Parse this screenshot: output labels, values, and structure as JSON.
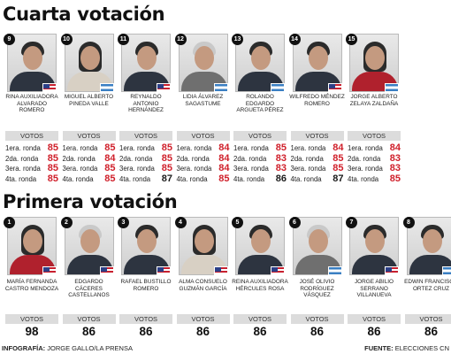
{
  "section_fourth": {
    "title": "Cuarta votación",
    "votes_label": "VOTOS",
    "round_labels": [
      "1era. ronda",
      "2da. ronda",
      "3era. ronda",
      "4ta. ronda"
    ],
    "candidates": [
      {
        "number": "9",
        "name": "RINA AUXILIADORA ALVARADO ROMERO",
        "flag": "us",
        "votes": [
          {
            "value": "85",
            "color": "#d0202b"
          },
          {
            "value": "85",
            "color": "#d0202b"
          },
          {
            "value": "85",
            "color": "#d0202b"
          },
          {
            "value": "85",
            "color": "#d0202b"
          }
        ]
      },
      {
        "number": "10",
        "name": "MIGUEL ALBERTO PINEDA VALLE",
        "flag": "hn",
        "votes": [
          {
            "value": "85",
            "color": "#d0202b"
          },
          {
            "value": "84",
            "color": "#d0202b"
          },
          {
            "value": "85",
            "color": "#d0202b"
          },
          {
            "value": "85",
            "color": "#d0202b"
          }
        ]
      },
      {
        "number": "11",
        "name": "REYNALDO ANTONIO HERNÁNDEZ",
        "flag": "us",
        "votes": [
          {
            "value": "85",
            "color": "#d0202b"
          },
          {
            "value": "85",
            "color": "#d0202b"
          },
          {
            "value": "85",
            "color": "#d0202b"
          },
          {
            "value": "87",
            "color": "#1a1a1a"
          }
        ]
      },
      {
        "number": "12",
        "name": "LIDIA ÁLVAREZ SAGASTUME",
        "flag": "hn",
        "votes": [
          {
            "value": "84",
            "color": "#d0202b"
          },
          {
            "value": "84",
            "color": "#d0202b"
          },
          {
            "value": "84",
            "color": "#d0202b"
          },
          {
            "value": "85",
            "color": "#d0202b"
          }
        ]
      },
      {
        "number": "13",
        "name": "ROLANDO EDGARDO ARGUETA PÉREZ",
        "flag": "hn",
        "votes": [
          {
            "value": "85",
            "color": "#d0202b"
          },
          {
            "value": "83",
            "color": "#d0202b"
          },
          {
            "value": "83",
            "color": "#d0202b"
          },
          {
            "value": "86",
            "color": "#1a1a1a"
          }
        ]
      },
      {
        "number": "14",
        "name": "WILFREDO MÉNDEZ ROMERO",
        "flag": "us",
        "votes": [
          {
            "value": "84",
            "color": "#d0202b"
          },
          {
            "value": "85",
            "color": "#d0202b"
          },
          {
            "value": "85",
            "color": "#d0202b"
          },
          {
            "value": "87",
            "color": "#1a1a1a"
          }
        ]
      },
      {
        "number": "15",
        "name": "JORGE ALBERTO ZELAYA ZALDAÑA",
        "flag": "hn",
        "votes": [
          {
            "value": "84",
            "color": "#d0202b"
          },
          {
            "value": "83",
            "color": "#d0202b"
          },
          {
            "value": "83",
            "color": "#d0202b"
          },
          {
            "value": "85",
            "color": "#d0202b"
          }
        ]
      }
    ]
  },
  "section_first": {
    "title": "Primera votación",
    "votes_label": "VOTOS",
    "candidates": [
      {
        "number": "1",
        "name": "MARÍA FERNANDA CASTRO MENDOZA",
        "flag": "us",
        "votes": "98"
      },
      {
        "number": "2",
        "name": "EDGARDO CÁCERES CASTELLANOS",
        "flag": "us",
        "votes": "86"
      },
      {
        "number": "3",
        "name": "RAFAEL BUSTILLO ROMERO",
        "flag": "us",
        "votes": "86"
      },
      {
        "number": "4",
        "name": "ALMA CONSUELO GUZMÁN GARCÍA",
        "flag": "us",
        "votes": "86"
      },
      {
        "number": "5",
        "name": "REINA AUXILIADORA HÉRCULES ROSA",
        "flag": "us",
        "votes": "86"
      },
      {
        "number": "6",
        "name": "JOSÉ OLIVIO RODRÍGUEZ VÁSQUEZ",
        "flag": "hn",
        "votes": "86"
      },
      {
        "number": "7",
        "name": "JORGE ABILIO SERRANO VILLANUEVA",
        "flag": "us",
        "votes": "86"
      },
      {
        "number": "8",
        "name": "EDWIN FRANCISCO ORTEZ CRUZ",
        "flag": "hn",
        "votes": "86"
      }
    ]
  },
  "credits": {
    "infographic_label": "INFOGRAFÍA:",
    "infographic_value": "JORGE GALLO/LA PRENSA",
    "source_label": "FUENTE:",
    "source_value": "ELECCIONES CN"
  },
  "colors": {
    "accent_red": "#d0202b",
    "votes_label_bg": "#dcdcdc",
    "flag_hn_blue": "#3a7fc3",
    "flag_us_red": "#c8202f",
    "flag_us_blue": "#2c3f87"
  }
}
